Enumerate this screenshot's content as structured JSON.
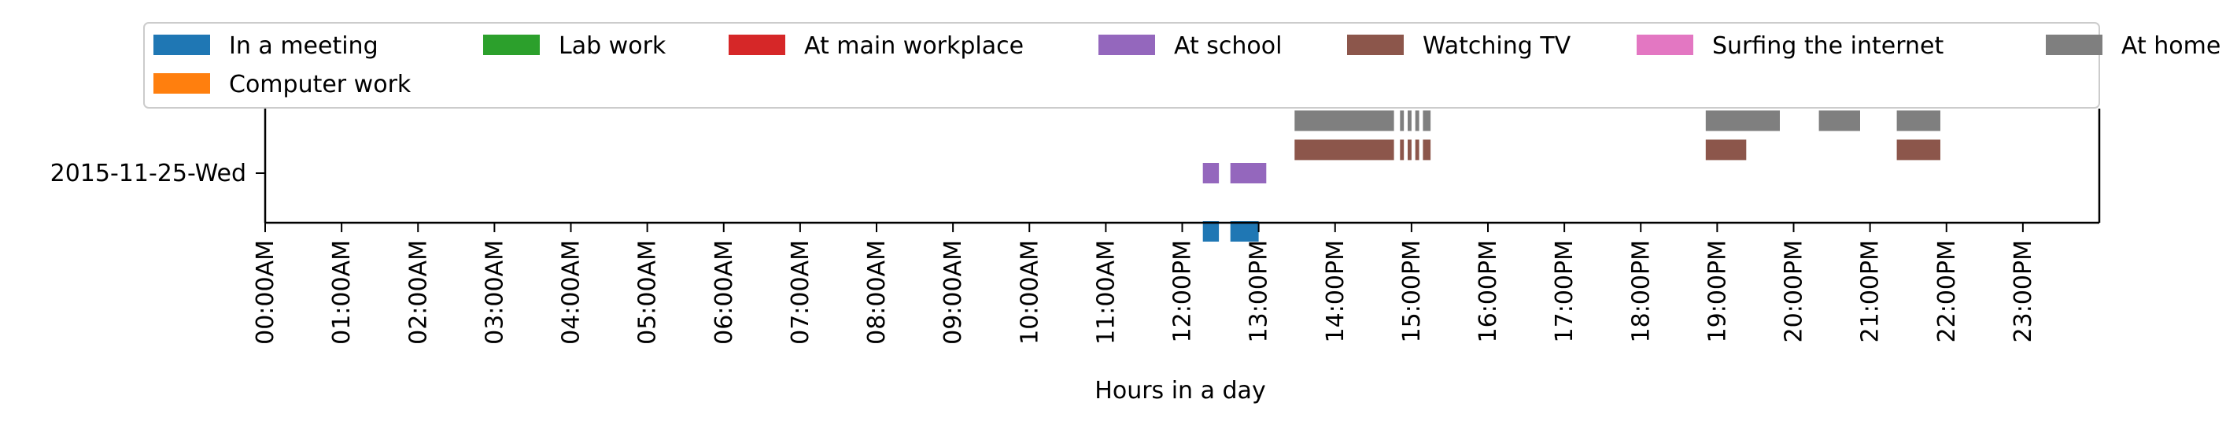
{
  "chart_data": {
    "type": "timeline",
    "xlabel": "Hours in a day",
    "ylabel": "",
    "xlim": [
      0,
      24
    ],
    "x_ticks": [
      "00:00AM",
      "01:00AM",
      "02:00AM",
      "03:00AM",
      "04:00AM",
      "05:00AM",
      "06:00AM",
      "07:00AM",
      "08:00AM",
      "09:00AM",
      "10:00AM",
      "11:00AM",
      "12:00PM",
      "13:00PM",
      "14:00PM",
      "15:00PM",
      "16:00PM",
      "17:00PM",
      "18:00PM",
      "19:00PM",
      "20:00PM",
      "21:00PM",
      "22:00PM",
      "23:00PM"
    ],
    "rows": [
      "2015-11-25-Wed"
    ],
    "legend": [
      {
        "name": "In a meeting",
        "color": "#1f77b4"
      },
      {
        "name": "Lab work",
        "color": "#2ca02c"
      },
      {
        "name": "At main workplace",
        "color": "#d62728"
      },
      {
        "name": "At school",
        "color": "#9467bd"
      },
      {
        "name": "Watching TV",
        "color": "#8c564b"
      },
      {
        "name": "Surfing the internet",
        "color": "#e377c2"
      },
      {
        "name": "At home",
        "color": "#7f7f7f"
      },
      {
        "name": "Computer work",
        "color": "#ff7f0e"
      }
    ],
    "series": [
      {
        "name": "In a meeting",
        "lane": -1.0,
        "intervals": [
          [
            12.27,
            12.48
          ],
          [
            12.63,
            13.0
          ]
        ]
      },
      {
        "name": "At school",
        "lane": 0.0,
        "intervals": [
          [
            12.27,
            12.48
          ],
          [
            12.63,
            13.1
          ]
        ]
      },
      {
        "name": "Watching TV",
        "lane": 0.4,
        "intervals": [
          [
            13.47,
            14.77
          ],
          [
            14.85,
            14.9
          ],
          [
            14.95,
            15.0
          ],
          [
            15.05,
            15.1
          ],
          [
            15.15,
            15.25
          ],
          [
            18.85,
            19.38
          ],
          [
            21.35,
            21.92
          ]
        ]
      },
      {
        "name": "At home",
        "lane": 0.9,
        "intervals": [
          [
            13.47,
            14.77
          ],
          [
            14.85,
            14.9
          ],
          [
            14.95,
            15.0
          ],
          [
            15.05,
            15.1
          ],
          [
            15.15,
            15.25
          ],
          [
            18.85,
            19.82
          ],
          [
            20.33,
            20.87
          ],
          [
            21.35,
            21.92
          ]
        ]
      }
    ]
  }
}
